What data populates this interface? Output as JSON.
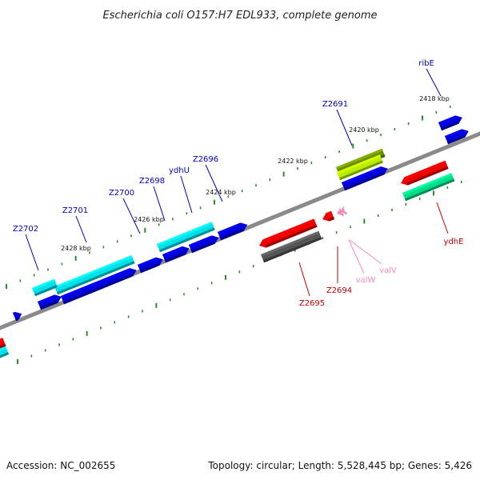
{
  "title": "Escherichia coli O157:H7 EDL933, complete genome",
  "footer": {
    "accession": "Accession: NC_002655",
    "summary": "Topology: circular; Length: 5,528,445 bp; Genes: 5,426"
  },
  "colors": {
    "forward_label": "#0000c8",
    "reverse_label": "#cc0000",
    "trna_label": "#ff88bb",
    "backbone": "#8a8a8a",
    "tick": "#2d8a2d"
  },
  "kbp_labels": [
    "2418 kbp",
    "2420 kbp",
    "2422 kbp",
    "2424 kbp",
    "2426 kbp",
    "2428 kbp"
  ],
  "genes": [
    {
      "label": "ribE",
      "strand": "forward"
    },
    {
      "label": "Z2691",
      "strand": "forward"
    },
    {
      "label": "Z2696",
      "strand": "forward"
    },
    {
      "label": "ydhU",
      "strand": "forward"
    },
    {
      "label": "Z2698",
      "strand": "forward"
    },
    {
      "label": "Z2700",
      "strand": "forward"
    },
    {
      "label": "Z2701",
      "strand": "forward"
    },
    {
      "label": "Z2702",
      "strand": "forward"
    },
    {
      "label": "ydhE",
      "strand": "reverse"
    },
    {
      "label": "valV",
      "strand": "reverse"
    },
    {
      "label": "valW",
      "strand": "reverse"
    },
    {
      "label": "Z2694",
      "strand": "reverse"
    },
    {
      "label": "Z2695",
      "strand": "reverse"
    }
  ]
}
